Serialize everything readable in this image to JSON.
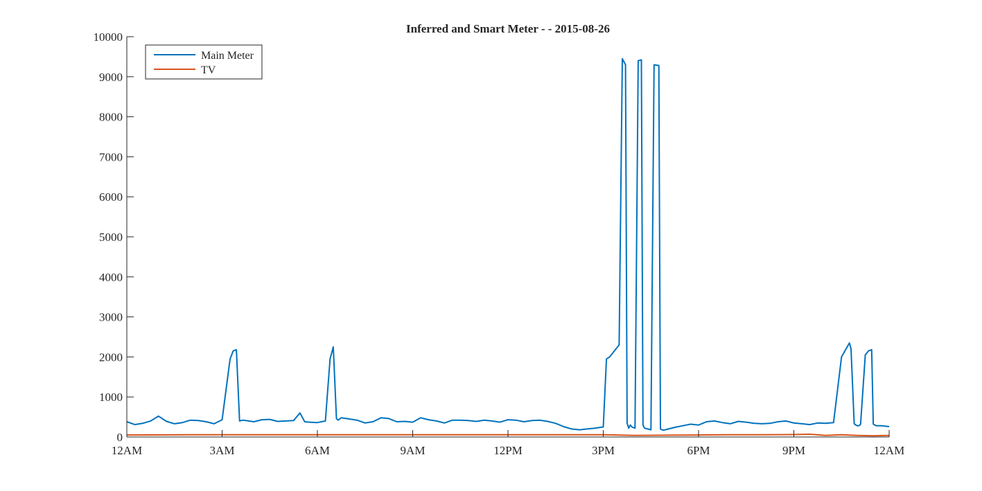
{
  "chart_data": {
    "type": "line",
    "title": "Inferred and Smart Meter -  - 2015-08-26",
    "xlabel": "",
    "ylabel": "",
    "x_ticks": [
      "12AM",
      "3AM",
      "6AM",
      "9AM",
      "12PM",
      "3PM",
      "6PM",
      "9PM",
      "12AM"
    ],
    "x_tick_hours": [
      0,
      3,
      6,
      9,
      12,
      15,
      18,
      21,
      24
    ],
    "xlim": [
      0,
      24
    ],
    "y_ticks": [
      "0",
      "1000",
      "2000",
      "3000",
      "4000",
      "5000",
      "6000",
      "7000",
      "8000",
      "9000",
      "10000"
    ],
    "y_tick_values": [
      0,
      1000,
      2000,
      3000,
      4000,
      5000,
      6000,
      7000,
      8000,
      9000,
      10000
    ],
    "ylim": [
      0,
      10000
    ],
    "grid": false,
    "legend_position": "top-left",
    "series": [
      {
        "name": "Main Meter",
        "color": "#0072BD",
        "hours": [
          0,
          0.25,
          0.5,
          0.75,
          1.0,
          1.25,
          1.5,
          1.75,
          2.0,
          2.25,
          2.5,
          2.75,
          3.0,
          3.25,
          3.3,
          3.35,
          3.45,
          3.55,
          3.65,
          3.75,
          4.0,
          4.25,
          4.5,
          4.75,
          5.0,
          5.25,
          5.45,
          5.6,
          5.75,
          6.0,
          6.25,
          6.4,
          6.45,
          6.5,
          6.6,
          6.65,
          6.75,
          7.0,
          7.25,
          7.5,
          7.75,
          8.0,
          8.25,
          8.5,
          8.75,
          9.0,
          9.25,
          9.5,
          9.75,
          10.0,
          10.25,
          10.5,
          10.75,
          11.0,
          11.25,
          11.5,
          11.75,
          12.0,
          12.25,
          12.5,
          12.75,
          13.0,
          13.25,
          13.5,
          13.75,
          14.0,
          14.25,
          14.5,
          14.75,
          15.0,
          15.1,
          15.2,
          15.3,
          15.4,
          15.5,
          15.6,
          15.7,
          15.75,
          15.8,
          15.85,
          15.9,
          16.0,
          16.1,
          16.2,
          16.25,
          16.3,
          16.4,
          16.5,
          16.6,
          16.75,
          16.8,
          16.85,
          16.9,
          17.0,
          17.25,
          17.5,
          17.75,
          18.0,
          18.25,
          18.5,
          18.75,
          19.0,
          19.25,
          19.5,
          19.75,
          20.0,
          20.25,
          20.5,
          20.75,
          21.0,
          21.25,
          21.5,
          21.75,
          22.0,
          22.25,
          22.5,
          22.75,
          22.8,
          22.9,
          22.95,
          23.0,
          23.05,
          23.1,
          23.25,
          23.35,
          23.45,
          23.5,
          23.55,
          23.6,
          23.75,
          24.0
        ],
        "values": [
          380,
          310,
          340,
          400,
          520,
          390,
          330,
          360,
          420,
          410,
          380,
          330,
          430,
          1950,
          2050,
          2150,
          2180,
          400,
          420,
          410,
          380,
          430,
          440,
          390,
          400,
          410,
          600,
          380,
          370,
          360,
          400,
          1950,
          2100,
          2250,
          460,
          420,
          480,
          450,
          420,
          350,
          380,
          480,
          460,
          380,
          390,
          370,
          480,
          430,
          400,
          350,
          420,
          420,
          410,
          390,
          420,
          400,
          370,
          430,
          420,
          380,
          410,
          420,
          390,
          340,
          260,
          200,
          180,
          200,
          220,
          250,
          1950,
          2000,
          2100,
          2200,
          2300,
          9450,
          9300,
          350,
          220,
          300,
          250,
          220,
          9400,
          9420,
          300,
          220,
          200,
          180,
          9300,
          9280,
          200,
          180,
          170,
          190,
          240,
          280,
          320,
          300,
          380,
          400,
          360,
          330,
          390,
          370,
          340,
          330,
          340,
          380,
          400,
          350,
          330,
          310,
          350,
          340,
          360,
          2000,
          2350,
          2200,
          330,
          300,
          280,
          280,
          320,
          2050,
          2150,
          2180,
          320,
          300,
          280,
          280,
          260
        ]
      },
      {
        "name": "TV",
        "color": "#D95319",
        "hours": [
          0,
          2,
          4,
          6,
          8,
          10,
          12,
          14,
          15,
          16,
          17,
          18,
          19,
          20,
          21,
          21.5,
          22,
          22.5,
          23,
          23.5,
          24
        ],
        "values": [
          50,
          55,
          55,
          55,
          55,
          55,
          55,
          55,
          55,
          40,
          45,
          50,
          55,
          55,
          60,
          70,
          40,
          55,
          40,
          30,
          40
        ]
      }
    ]
  }
}
